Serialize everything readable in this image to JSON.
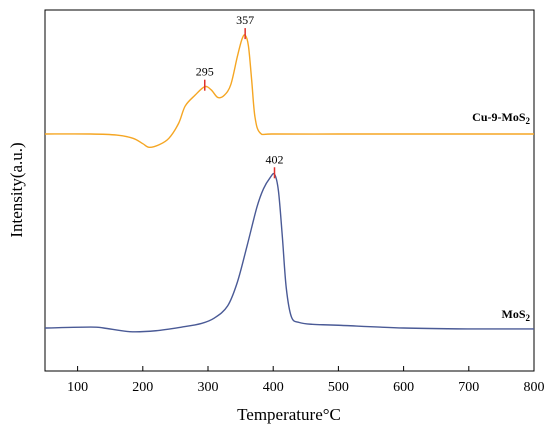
{
  "chart_data": {
    "type": "line",
    "xlabel": "Temperature°C",
    "ylabel": "Intensity(a.u.)",
    "xlim": [
      50,
      800
    ],
    "xticks": [
      100,
      200,
      300,
      400,
      500,
      600,
      700,
      800
    ],
    "y_units": "arbitrary",
    "grid": false,
    "legend": "inline labels at right end of each curve",
    "series": [
      {
        "label_main": "Cu-9-MoS",
        "label_sub": "2",
        "color": "#F5A623",
        "x": [
          50,
          120,
          160,
          185,
          200,
          210,
          225,
          240,
          255,
          265,
          280,
          295,
          305,
          315,
          325,
          335,
          345,
          352,
          357,
          362,
          367,
          372,
          380,
          400,
          500,
          600,
          700,
          800
        ],
        "y": [
          0.0,
          0.0,
          -0.05,
          -0.2,
          -0.45,
          -0.62,
          -0.5,
          -0.2,
          0.5,
          1.3,
          1.8,
          2.2,
          2.05,
          1.7,
          1.8,
          2.3,
          3.6,
          4.4,
          4.6,
          4.1,
          2.5,
          0.8,
          0.05,
          0.0,
          0.0,
          0.0,
          0.0,
          0.0
        ],
        "peaks": [
          295,
          357
        ]
      },
      {
        "label_main": "MoS",
        "label_sub": "2",
        "color": "#4A5A96",
        "x": [
          50,
          120,
          140,
          180,
          220,
          260,
          290,
          310,
          330,
          345,
          360,
          375,
          385,
          395,
          402,
          408,
          414,
          420,
          428,
          440,
          460,
          500,
          600,
          700,
          800
        ],
        "y": [
          0.0,
          0.05,
          0.0,
          -0.2,
          -0.15,
          0.05,
          0.25,
          0.55,
          1.2,
          2.5,
          4.5,
          6.6,
          7.6,
          8.2,
          8.4,
          7.5,
          5.0,
          2.2,
          0.6,
          0.3,
          0.2,
          0.15,
          0.0,
          -0.05,
          -0.05
        ],
        "peaks": [
          402
        ]
      }
    ]
  }
}
